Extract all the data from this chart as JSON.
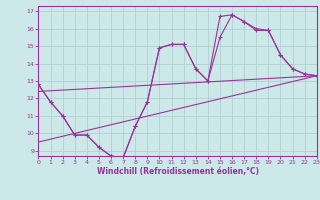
{
  "xlabel": "Windchill (Refroidissement éolien,°C)",
  "bg_color": "#cce8e8",
  "line_color": "#993399",
  "grid_color": "#aacccc",
  "x_values": [
    0,
    1,
    2,
    3,
    4,
    5,
    6,
    7,
    8,
    9,
    10,
    11,
    12,
    13,
    14,
    15,
    16,
    17,
    18,
    19,
    20,
    21,
    22,
    23
  ],
  "line1_y": [
    12.8,
    11.8,
    11.0,
    9.9,
    9.9,
    9.2,
    8.7,
    8.6,
    10.4,
    11.8,
    14.9,
    15.1,
    15.1,
    13.7,
    13.0,
    15.5,
    16.8,
    16.4,
    16.0,
    15.9,
    14.5,
    13.7,
    13.4,
    13.3
  ],
  "line2_y": [
    12.8,
    11.8,
    11.0,
    9.9,
    9.9,
    9.2,
    8.7,
    8.6,
    10.4,
    11.8,
    14.9,
    15.1,
    15.1,
    13.7,
    13.0,
    16.7,
    16.8,
    16.4,
    15.9,
    15.9,
    14.5,
    13.7,
    13.4,
    13.3
  ],
  "trend1_x": [
    0,
    23
  ],
  "trend1_y": [
    12.4,
    13.3
  ],
  "trend2_x": [
    0,
    23
  ],
  "trend2_y": [
    9.5,
    13.3
  ],
  "xlim": [
    0,
    23
  ],
  "ylim": [
    8.7,
    17.3
  ],
  "yticks": [
    9,
    10,
    11,
    12,
    13,
    14,
    15,
    16,
    17
  ],
  "xticks": [
    0,
    1,
    2,
    3,
    4,
    5,
    6,
    7,
    8,
    9,
    10,
    11,
    12,
    13,
    14,
    15,
    16,
    17,
    18,
    19,
    20,
    21,
    22,
    23
  ],
  "tick_fontsize": 4.5,
  "xlabel_fontsize": 5.5
}
